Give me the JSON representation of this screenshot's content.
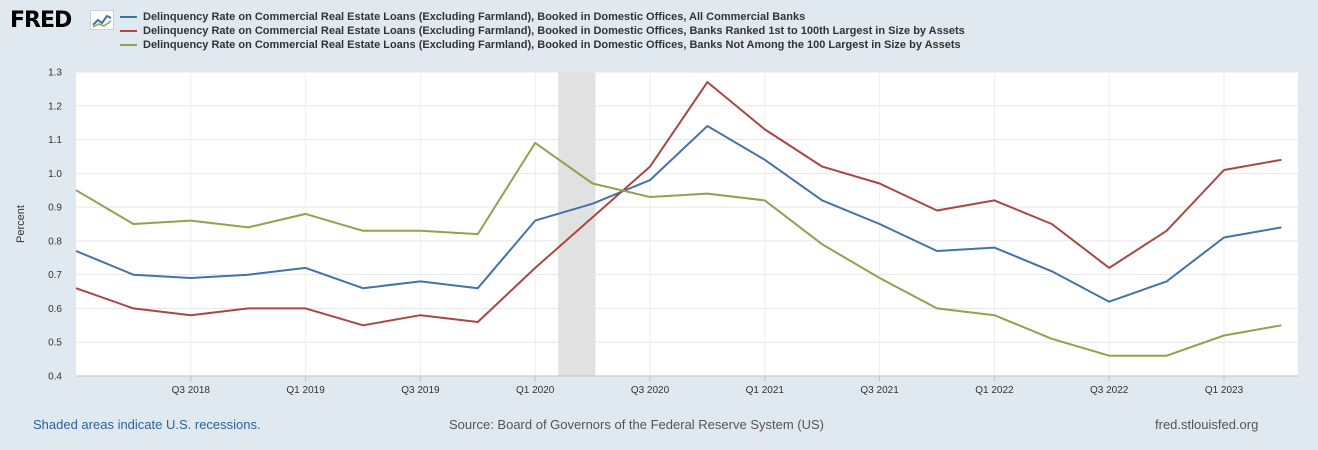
{
  "branding": {
    "logo_text": "FRED",
    "logo_mark_icon": "chart-line-icon"
  },
  "footer": {
    "recession_note": "Shaded areas indicate U.S. recessions.",
    "source": "Source: Board of Governors of the Federal Reserve System (US)",
    "website": "fred.stlouisfed.org"
  },
  "chart_data": {
    "type": "line",
    "title": "",
    "xlabel": "",
    "ylabel": "Percent",
    "ylim": [
      0.4,
      1.3
    ],
    "yticks": [
      0.4,
      0.5,
      0.6,
      0.7,
      0.8,
      0.9,
      1.0,
      1.1,
      1.2,
      1.3
    ],
    "ytick_labels": [
      "0.4",
      "0.5",
      "0.6",
      "0.7",
      "0.8",
      "0.9",
      "1.0",
      "1.1",
      "1.2",
      "1.3"
    ],
    "grid": true,
    "x": [
      "2018-01-01",
      "2018-04-01",
      "2018-07-01",
      "2018-10-01",
      "2019-01-01",
      "2019-04-01",
      "2019-07-01",
      "2019-10-01",
      "2020-01-01",
      "2020-04-01",
      "2020-07-01",
      "2020-10-01",
      "2021-01-01",
      "2021-04-01",
      "2021-07-01",
      "2021-10-01",
      "2022-01-01",
      "2022-04-01",
      "2022-07-01",
      "2022-10-01",
      "2023-01-01",
      "2023-04-01"
    ],
    "xtick_labels": [
      "Q3 2018",
      "Q1 2019",
      "Q3 2019",
      "Q1 2020",
      "Q3 2020",
      "Q1 2021",
      "Q3 2021",
      "Q1 2022",
      "Q3 2022",
      "Q1 2023"
    ],
    "xtick_index": [
      2,
      4,
      6,
      8,
      10,
      12,
      14,
      16,
      18,
      20
    ],
    "recessions": [
      {
        "start_index": 8.4,
        "end_index": 9.05
      }
    ],
    "series": [
      {
        "name": "Delinquency Rate on Commercial Real Estate Loans (Excluding Farmland), Booked in Domestic Offices, All Commercial Banks",
        "color": "#4572a7",
        "values": [
          0.77,
          0.7,
          0.69,
          0.7,
          0.72,
          0.66,
          0.68,
          0.66,
          0.86,
          0.91,
          0.98,
          1.14,
          1.04,
          0.92,
          0.85,
          0.77,
          0.78,
          0.71,
          0.62,
          0.68,
          0.81,
          0.84
        ]
      },
      {
        "name": "Delinquency Rate on Commercial Real Estate Loans (Excluding Farmland), Booked in Domestic Offices, Banks Ranked 1st to 100th Largest in Size by Assets",
        "color": "#aa4643",
        "values": [
          0.66,
          0.6,
          0.58,
          0.6,
          0.6,
          0.55,
          0.58,
          0.56,
          0.72,
          0.87,
          1.02,
          1.27,
          1.13,
          1.02,
          0.97,
          0.89,
          0.92,
          0.85,
          0.72,
          0.83,
          1.01,
          1.04
        ]
      },
      {
        "name": "Delinquency Rate on Commercial Real Estate Loans (Excluding Farmland), Booked in Domestic Offices, Banks Not Among the 100 Largest in Size by Assets",
        "color": "#89a54e",
        "values": [
          0.95,
          0.85,
          0.86,
          0.84,
          0.88,
          0.83,
          0.83,
          0.82,
          1.09,
          0.97,
          0.93,
          0.94,
          0.92,
          0.79,
          0.69,
          0.6,
          0.58,
          0.51,
          0.46,
          0.46,
          0.52,
          0.55
        ]
      }
    ]
  }
}
